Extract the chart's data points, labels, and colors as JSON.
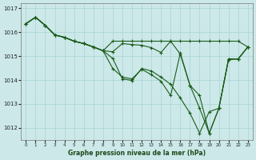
{
  "title": "Graphe pression niveau de la mer (hPa)",
  "bg_color": "#cce8e8",
  "grid_color": "#a8d4d4",
  "line_color": "#1a5c1a",
  "series": [
    [
      1016.35,
      1016.62,
      1016.28,
      1015.88,
      1015.78,
      1015.62,
      1015.52,
      1015.38,
      1015.22,
      1014.9,
      1014.05,
      1013.98,
      1014.48,
      1014.38,
      1014.12,
      1013.82,
      1013.25,
      1012.62,
      1011.78,
      1012.68,
      1012.82,
      1014.88,
      1014.88,
      1015.38
    ],
    [
      1016.35,
      1016.62,
      1016.28,
      1015.88,
      1015.78,
      1015.62,
      1015.52,
      1015.38,
      1015.22,
      1015.62,
      1015.62,
      1015.62,
      1015.62,
      1015.62,
      1015.62,
      1015.62,
      1015.62,
      1015.62,
      1015.62,
      1015.62,
      1015.62,
      1015.62,
      1015.62,
      1015.38
    ],
    [
      1016.35,
      1016.62,
      1016.28,
      1015.88,
      1015.78,
      1015.62,
      1015.52,
      1015.38,
      1015.22,
      1014.48,
      1014.12,
      1014.05,
      1014.45,
      1014.22,
      1013.95,
      1013.35,
      1015.12,
      1013.78,
      1012.82,
      1011.78,
      1012.82,
      1014.85,
      1014.88,
      1015.38
    ],
    [
      1016.35,
      1016.62,
      1016.28,
      1015.88,
      1015.78,
      1015.62,
      1015.52,
      1015.38,
      1015.22,
      1015.18,
      1015.52,
      1015.48,
      1015.45,
      1015.35,
      1015.15,
      1015.62,
      1015.08,
      1013.78,
      1013.35,
      1011.78,
      1012.82,
      1014.88,
      1014.88,
      1015.38
    ]
  ],
  "ylim": [
    1011.5,
    1017.2
  ],
  "yticks": [
    1012,
    1013,
    1014,
    1015,
    1016,
    1017
  ],
  "xlim": [
    -0.5,
    23.5
  ],
  "xticks": [
    0,
    1,
    2,
    3,
    4,
    5,
    6,
    7,
    8,
    9,
    10,
    11,
    12,
    13,
    14,
    15,
    16,
    17,
    18,
    19,
    20,
    21,
    22,
    23
  ]
}
